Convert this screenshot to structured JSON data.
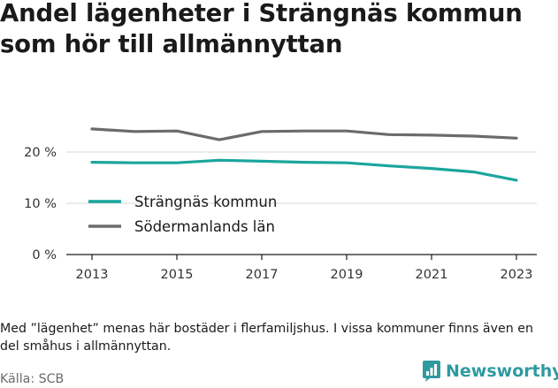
{
  "header": {
    "title": "Andel lägenheter i Strängnäs kommun som hör till allmännyttan"
  },
  "footer": {
    "note": "Med ”lägenhet” menas här bostäder i flerfamiljshus. I vissa kommuner finns även en del småhus i allmännyttan.",
    "source": "Källa: SCB",
    "brand": "Newsworthy",
    "brand_color": "#2f9aa0"
  },
  "chart_data": {
    "type": "line",
    "title": "Andel lägenheter i Strängnäs kommun som hör till allmännyttan",
    "xlabel": "",
    "ylabel": "",
    "x": [
      2013,
      2014,
      2015,
      2016,
      2017,
      2018,
      2019,
      2020,
      2021,
      2022,
      2023
    ],
    "xticks": [
      2013,
      2015,
      2017,
      2019,
      2021,
      2023
    ],
    "xtick_labels": [
      "2013",
      "2015",
      "2017",
      "2019",
      "2021",
      "2023"
    ],
    "yticks": [
      0,
      10,
      20
    ],
    "ytick_labels": [
      "0 %",
      "10 %",
      "20 %"
    ],
    "ylim": [
      0,
      26
    ],
    "grid": true,
    "legend_position": "lower-left",
    "series": [
      {
        "name": "Strängnäs kommun",
        "color": "#1aa59d",
        "values": [
          18.0,
          17.9,
          17.9,
          18.4,
          18.2,
          18.0,
          17.9,
          17.3,
          16.8,
          16.1,
          14.5
        ]
      },
      {
        "name": "Södermanlands län",
        "color": "#6b6b6b",
        "values": [
          24.5,
          24.0,
          24.1,
          22.4,
          24.0,
          24.1,
          24.1,
          23.4,
          23.3,
          23.1,
          22.7
        ]
      }
    ]
  }
}
